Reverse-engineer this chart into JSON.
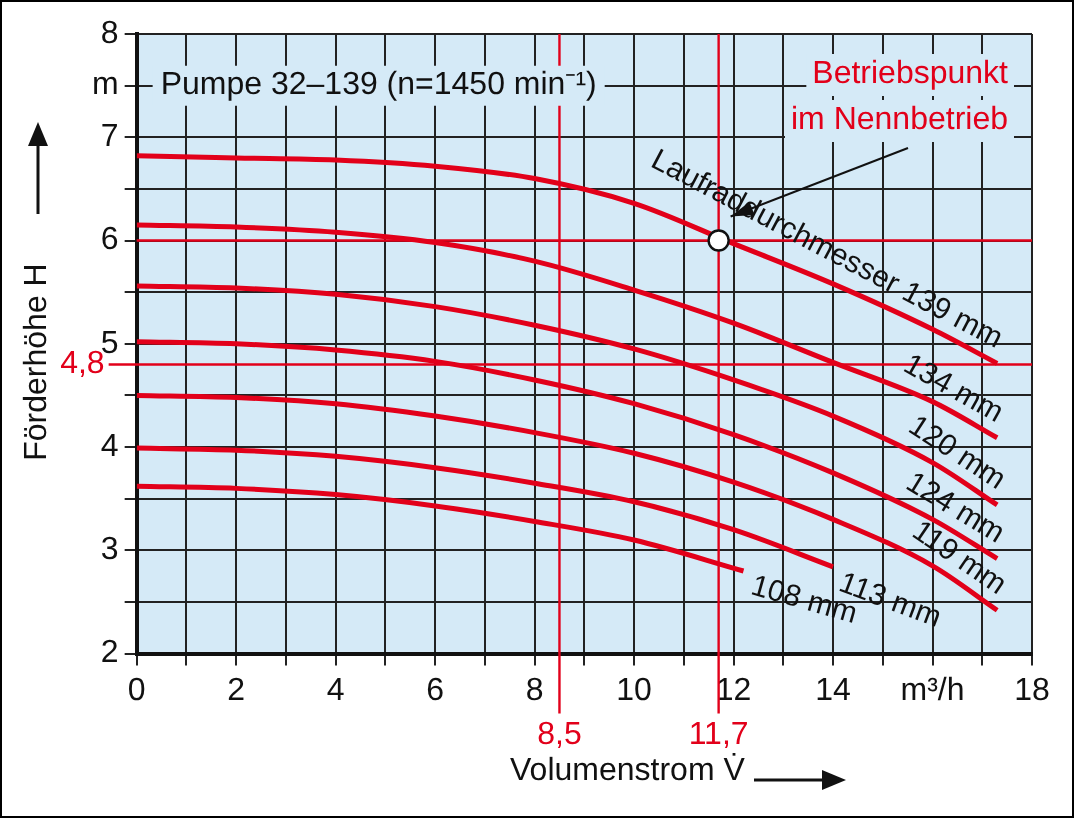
{
  "chart_data": {
    "type": "line",
    "title": "Pumpe 32–139 (n=1450 min⁻¹)",
    "xlabel": "Volumenstrom V̇",
    "ylabel": "Förderhöhe H",
    "x": [
      0,
      2,
      4,
      6,
      8,
      10,
      12,
      14,
      16,
      17.3
    ],
    "series": [
      {
        "name": "Laufraddurchmesser 139 mm",
        "color": "#e2001a",
        "values": [
          6.82,
          6.8,
          6.78,
          6.72,
          6.6,
          6.36,
          5.97,
          5.58,
          5.14,
          4.81
        ]
      },
      {
        "name": "134 mm",
        "color": "#e2001a",
        "values": [
          6.15,
          6.13,
          6.08,
          5.98,
          5.8,
          5.52,
          5.2,
          4.82,
          4.44,
          4.09
        ]
      },
      {
        "name": "120 mm",
        "color": "#e2001a",
        "values": [
          5.56,
          5.54,
          5.48,
          5.36,
          5.18,
          4.95,
          4.65,
          4.3,
          3.85,
          3.44
        ]
      },
      {
        "name": "124 mm",
        "color": "#e2001a",
        "values": [
          5.02,
          5.0,
          4.94,
          4.83,
          4.65,
          4.42,
          4.12,
          3.75,
          3.3,
          2.92
        ]
      },
      {
        "name": "119 mm",
        "color": "#e2001a",
        "values": [
          4.5,
          4.48,
          4.42,
          4.3,
          4.14,
          3.94,
          3.66,
          3.3,
          2.85,
          2.42
        ]
      },
      {
        "name": "113 mm",
        "color": "#e2001a",
        "x": [
          0,
          2,
          4,
          6,
          8,
          10,
          12,
          14
        ],
        "values": [
          3.99,
          3.97,
          3.91,
          3.8,
          3.65,
          3.47,
          3.2,
          2.84
        ]
      },
      {
        "name": "108 mm",
        "color": "#e2001a",
        "x": [
          0,
          2,
          4,
          6,
          8,
          10,
          12.2
        ],
        "values": [
          3.62,
          3.6,
          3.54,
          3.43,
          3.28,
          3.1,
          2.8
        ]
      },
      {
        "type": "scatter",
        "color": "#ffffff",
        "marker": "circle",
        "x": [
          11.7
        ],
        "values": [
          6.0
        ]
      }
    ],
    "xlim": [
      0,
      18
    ],
    "ylim": [
      2,
      8
    ],
    "xticks": [
      0,
      {
        "value": 1,
        "label": null
      },
      2,
      {
        "value": 3,
        "label": null
      },
      4,
      {
        "value": 5,
        "label": null
      },
      6,
      {
        "value": 7,
        "label": null
      },
      8,
      {
        "value": 9,
        "label": null
      },
      10,
      {
        "value": 11,
        "label": null
      },
      12,
      {
        "value": 13,
        "label": null
      },
      14,
      {
        "value": 15,
        "label": null
      },
      {
        "value": 16,
        "label": "m³/h"
      },
      {
        "value": 17,
        "label": null
      },
      18
    ],
    "yticks": [
      2,
      {
        "value": 2.5,
        "label": null
      },
      3,
      {
        "value": 3.5,
        "label": null
      },
      4,
      {
        "value": 4.5,
        "label": null
      },
      5,
      {
        "value": 5.5,
        "label": null
      },
      6,
      {
        "value": 6.5,
        "label": null
      },
      7,
      {
        "value": 7.5,
        "label": "m"
      },
      8
    ],
    "grid": true,
    "legend": false,
    "marker": "none",
    "line_style": "solid",
    "ref_lines": [
      {
        "axis": "y",
        "value": 6,
        "color": "#e2001a"
      },
      {
        "axis": "x",
        "value": 11.7,
        "label": "11,7",
        "color": "#e2001a"
      },
      {
        "axis": "y",
        "value": 4.8,
        "label": "4,8",
        "color": "#e2001a"
      },
      {
        "axis": "x",
        "value": 8.5,
        "label": "8,5",
        "color": "#e2001a"
      }
    ],
    "annotations": [
      "Betriebspunkt im Nennbetrieb"
    ]
  }
}
